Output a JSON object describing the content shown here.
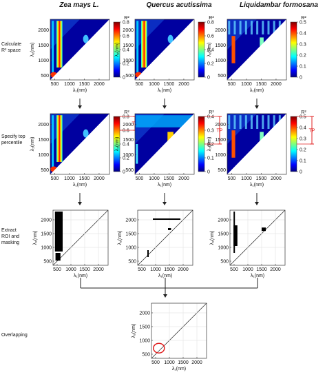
{
  "species": [
    "Zea mays L.",
    "Quercus acutissima",
    "Liquidambar formosana"
  ],
  "steps": {
    "calculate": [
      "Calculate",
      "R² space"
    ],
    "specify": [
      "Specify top",
      "percentile"
    ],
    "extract": [
      "Extract",
      "ROI and",
      "masking"
    ],
    "overlap": [
      "Overlapping"
    ]
  },
  "axes": {
    "x_label": "λ₁(nm)",
    "y_label": "λ₂(nm)",
    "x_ticks": [
      "500",
      "1000",
      "1500",
      "2000"
    ],
    "y_ticks": [
      "500",
      "1000",
      "1500",
      "2000"
    ]
  },
  "colorbar": {
    "title": "R²",
    "tp_label": "TP",
    "zea_ticks": [
      "0",
      "0.2",
      "0.4",
      "0.6",
      "0.8"
    ],
    "quercus_ticks": [
      "0",
      "0.2",
      "0.4",
      "0.6",
      "0.8"
    ],
    "liquid_ticks": [
      "0",
      "0.1",
      "0.2",
      "0.3",
      "0.4",
      "0.5"
    ],
    "zea_tp_ticks": [
      "0",
      "0.2",
      "0.4",
      "0.6",
      "0.8"
    ],
    "quercus_tp_ticks": [
      "0",
      "0.1",
      "0.2",
      "0.3",
      "0.4"
    ],
    "liquid_tp_ticks": [
      "0",
      "0.1",
      "0.2",
      "0.3",
      "0.4",
      "0.5"
    ]
  },
  "colors": {
    "jet_low": "#00007f",
    "jet_high": "#7f0000",
    "arrow": "#222222",
    "tp_marker": "#e02020",
    "overlap_circle": "#e02020"
  }
}
